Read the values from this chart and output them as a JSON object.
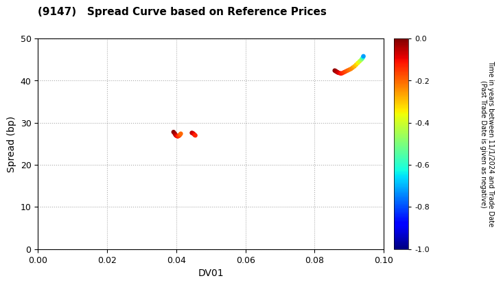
{
  "title": "(9147)   Spread Curve based on Reference Prices",
  "xlabel": "DV01",
  "ylabel": "Spread (bp)",
  "xlim": [
    0.0,
    0.1
  ],
  "ylim": [
    0,
    50
  ],
  "xticks": [
    0.0,
    0.02,
    0.04,
    0.06,
    0.08,
    0.1
  ],
  "yticks": [
    0,
    10,
    20,
    30,
    40,
    50
  ],
  "colorbar_label": "Time in years between 11/1/2024 and Trade Date\n(Past Trade Date is given as negative)",
  "colorbar_vmin": -1.0,
  "colorbar_vmax": 0.0,
  "colorbar_ticks": [
    0.0,
    -0.2,
    -0.4,
    -0.6,
    -0.8,
    -1.0
  ],
  "cluster1": {
    "points": [
      {
        "dv01": 0.0392,
        "spread": 27.8,
        "c": -0.01
      },
      {
        "dv01": 0.0395,
        "spread": 27.5,
        "c": -0.02
      },
      {
        "dv01": 0.0397,
        "spread": 27.2,
        "c": -0.04
      },
      {
        "dv01": 0.0399,
        "spread": 27.0,
        "c": -0.06
      },
      {
        "dv01": 0.0401,
        "spread": 26.9,
        "c": -0.08
      },
      {
        "dv01": 0.0403,
        "spread": 26.8,
        "c": -0.1
      },
      {
        "dv01": 0.0405,
        "spread": 26.8,
        "c": -0.12
      },
      {
        "dv01": 0.0407,
        "spread": 26.9,
        "c": -0.14
      },
      {
        "dv01": 0.0409,
        "spread": 27.0,
        "c": -0.16
      },
      {
        "dv01": 0.0411,
        "spread": 27.2,
        "c": -0.18
      },
      {
        "dv01": 0.0413,
        "spread": 27.4,
        "c": -0.2
      },
      {
        "dv01": 0.0445,
        "spread": 27.6,
        "c": -0.05
      },
      {
        "dv01": 0.0448,
        "spread": 27.5,
        "c": -0.07
      },
      {
        "dv01": 0.0451,
        "spread": 27.3,
        "c": -0.09
      },
      {
        "dv01": 0.0453,
        "spread": 27.1,
        "c": -0.11
      },
      {
        "dv01": 0.0455,
        "spread": 27.0,
        "c": -0.13
      }
    ]
  },
  "cluster2": {
    "points": [
      {
        "dv01": 0.0858,
        "spread": 42.4,
        "c": -0.01
      },
      {
        "dv01": 0.086,
        "spread": 42.3,
        "c": -0.02
      },
      {
        "dv01": 0.0862,
        "spread": 42.2,
        "c": -0.03
      },
      {
        "dv01": 0.0864,
        "spread": 42.1,
        "c": -0.04
      },
      {
        "dv01": 0.0866,
        "spread": 42.0,
        "c": -0.05
      },
      {
        "dv01": 0.0868,
        "spread": 41.9,
        "c": -0.07
      },
      {
        "dv01": 0.0872,
        "spread": 41.8,
        "c": -0.09
      },
      {
        "dv01": 0.0876,
        "spread": 41.7,
        "c": -0.11
      },
      {
        "dv01": 0.088,
        "spread": 41.8,
        "c": -0.13
      },
      {
        "dv01": 0.0885,
        "spread": 42.0,
        "c": -0.15
      },
      {
        "dv01": 0.089,
        "spread": 42.2,
        "c": -0.17
      },
      {
        "dv01": 0.0895,
        "spread": 42.4,
        "c": -0.19
      },
      {
        "dv01": 0.09,
        "spread": 42.6,
        "c": -0.21
      },
      {
        "dv01": 0.0905,
        "spread": 42.8,
        "c": -0.23
      },
      {
        "dv01": 0.091,
        "spread": 43.1,
        "c": -0.25
      },
      {
        "dv01": 0.0915,
        "spread": 43.4,
        "c": -0.28
      },
      {
        "dv01": 0.092,
        "spread": 43.8,
        "c": -0.31
      },
      {
        "dv01": 0.0925,
        "spread": 44.2,
        "c": -0.35
      },
      {
        "dv01": 0.093,
        "spread": 44.6,
        "c": -0.4
      },
      {
        "dv01": 0.0935,
        "spread": 45.0,
        "c": -0.46
      },
      {
        "dv01": 0.0938,
        "spread": 45.3,
        "c": -0.53
      },
      {
        "dv01": 0.094,
        "spread": 45.6,
        "c": -0.62
      },
      {
        "dv01": 0.0941,
        "spread": 45.8,
        "c": -0.72
      }
    ]
  }
}
